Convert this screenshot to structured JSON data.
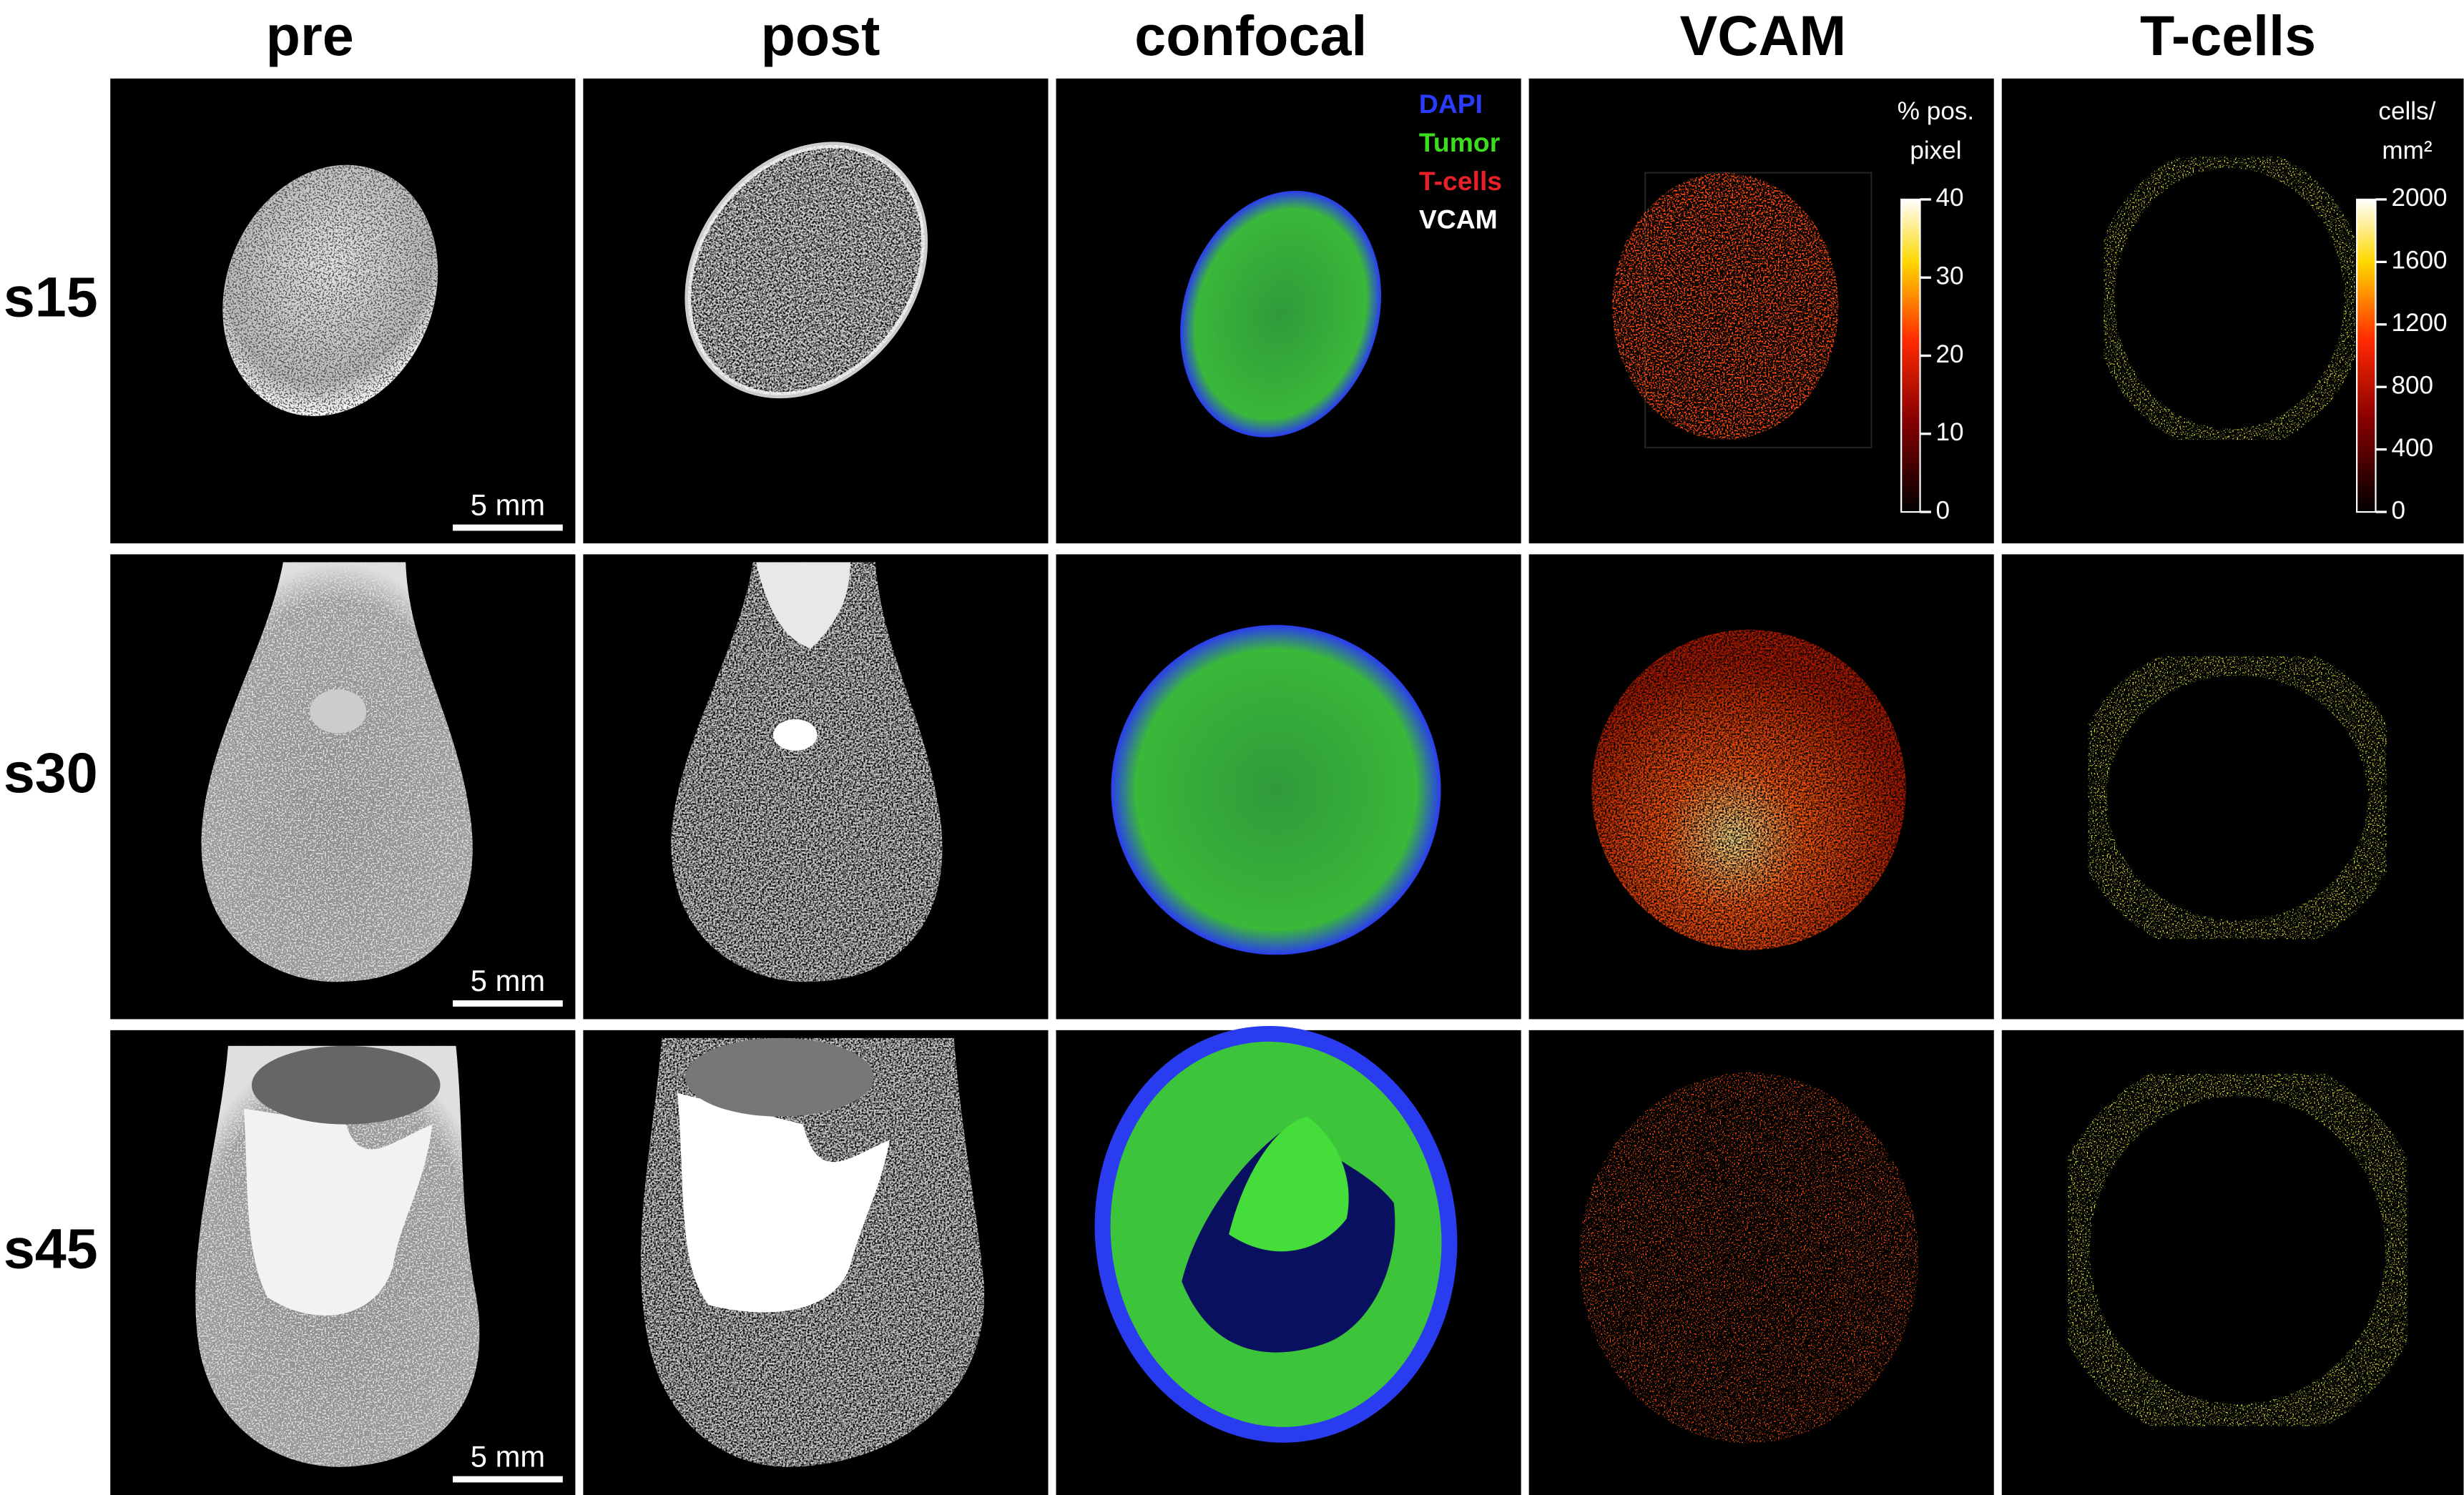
{
  "columns": [
    "pre",
    "post",
    "confocal",
    "VCAM",
    "T-cells"
  ],
  "rows": [
    {
      "label": "s15",
      "scale_bar": "5 mm"
    },
    {
      "label": "s30",
      "scale_bar": "5 mm"
    },
    {
      "label": "s45",
      "scale_bar": "5 mm"
    }
  ],
  "legend": [
    {
      "label": "DAPI",
      "color": "#2b3cff"
    },
    {
      "label": "Tumor",
      "color": "#3ddc1e"
    },
    {
      "label": "T-cells",
      "color": "#e8202a"
    },
    {
      "label": "VCAM",
      "color": "#ffffff"
    }
  ],
  "colorbars": [
    {
      "title": [
        "% pos.",
        "pixel"
      ],
      "ticks": [
        0,
        10,
        20,
        30,
        40
      ]
    },
    {
      "title": [
        "cells/",
        "mm²"
      ],
      "ticks": [
        0,
        400,
        800,
        1200,
        1600,
        2000
      ]
    }
  ]
}
